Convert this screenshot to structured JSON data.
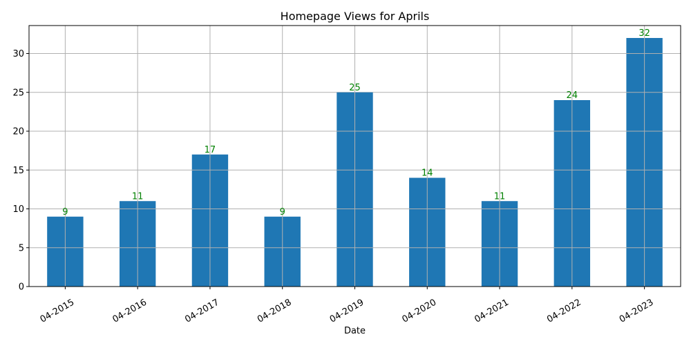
{
  "chart_data": {
    "type": "bar",
    "title": "Homepage Views for Aprils",
    "xlabel": "Date",
    "ylabel": "",
    "categories": [
      "04-2015",
      "04-2016",
      "04-2017",
      "04-2018",
      "04-2019",
      "04-2020",
      "04-2021",
      "04-2022",
      "04-2023"
    ],
    "values": [
      9,
      11,
      17,
      9,
      25,
      14,
      11,
      24,
      32
    ],
    "ylim": [
      0,
      33.6
    ],
    "yticks": [
      0,
      5,
      10,
      15,
      20,
      25,
      30
    ],
    "grid": true,
    "legend": "none",
    "x_tick_rotation": 30,
    "bar_color": "#1f77b4",
    "data_label_color": "#008000",
    "grid_color": "#b0b0b0"
  }
}
